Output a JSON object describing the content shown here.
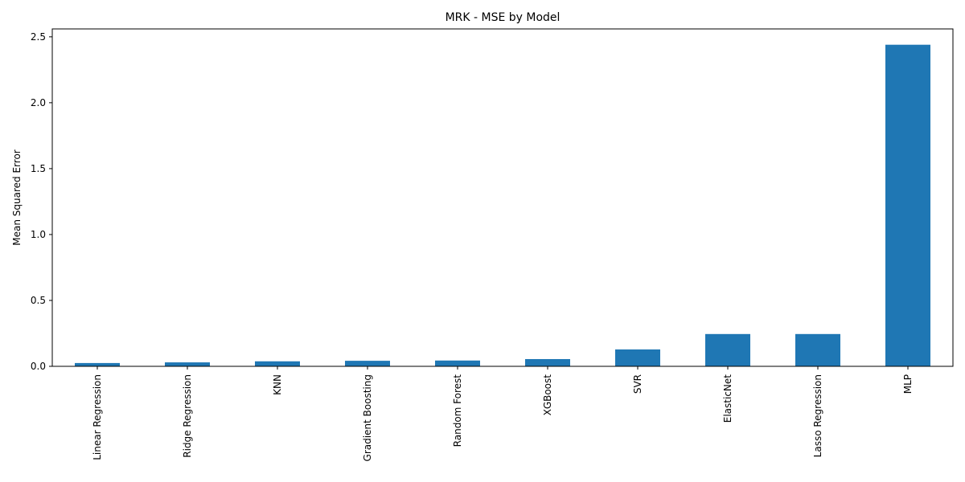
{
  "chart_data": {
    "type": "bar",
    "title": "MRK - MSE by Model",
    "xlabel": "",
    "ylabel": "Mean Squared Error",
    "categories": [
      "Linear Regression",
      "Ridge Regression",
      "KNN",
      "Gradient Boosting",
      "Random Forest",
      "XGBoost",
      "SVR",
      "ElasticNet",
      "Lasso Regression",
      "MLP"
    ],
    "values": [
      0.025,
      0.03,
      0.038,
      0.042,
      0.044,
      0.055,
      0.128,
      0.245,
      0.245,
      2.44
    ],
    "ylim": [
      0,
      2.56
    ],
    "yticks": [
      0.0,
      0.5,
      1.0,
      1.5,
      2.0,
      2.5
    ],
    "ytick_labels": [
      "0.0",
      "0.5",
      "1.0",
      "1.5",
      "2.0",
      "2.5"
    ],
    "bar_color": "#1f77b4",
    "grid": false,
    "legend": "none"
  }
}
